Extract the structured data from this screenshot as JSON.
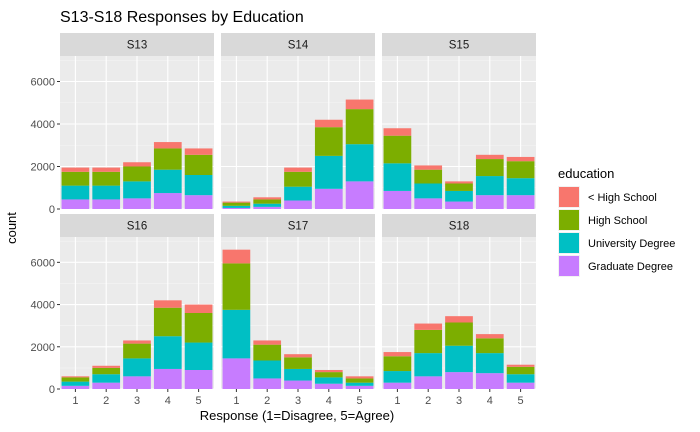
{
  "chart_data": {
    "type": "bar",
    "stacked": true,
    "title": "S13-S18 Responses by Education",
    "xlabel": "Response (1=Disagree, 5=Agree)",
    "ylabel": "count",
    "categories": [
      "1",
      "2",
      "3",
      "4",
      "5"
    ],
    "ylim": [
      0,
      7200
    ],
    "yticks": [
      0,
      2000,
      4000,
      6000
    ],
    "grid": true,
    "legend": {
      "title": "education",
      "position": "right",
      "items": [
        {
          "label": "< High School",
          "color": "#F8766D"
        },
        {
          "label": "High School",
          "color": "#7CAE00"
        },
        {
          "label": "University Degree",
          "color": "#00BFC4"
        },
        {
          "label": "Graduate Degree",
          "color": "#C77CFF"
        }
      ]
    },
    "panels": [
      {
        "name": "S13",
        "stacks": [
          {
            "Graduate Degree": [
              450,
              450,
              500,
              750,
              650
            ]
          },
          {
            "University Degree": [
              650,
              650,
              800,
              1100,
              950
            ]
          },
          {
            "High School": [
              650,
              650,
              700,
              1000,
              950
            ]
          },
          {
            "< High School": [
              200,
              200,
              200,
              300,
              300
            ]
          }
        ]
      },
      {
        "name": "S14",
        "stacks": [
          {
            "Graduate Degree": [
              50,
              100,
              400,
              950,
              1300
            ]
          },
          {
            "University Degree": [
              100,
              150,
              650,
              1550,
              1750
            ]
          },
          {
            "High School": [
              150,
              200,
              700,
              1350,
              1650
            ]
          },
          {
            "< High School": [
              50,
              100,
              200,
              350,
              450
            ]
          }
        ]
      },
      {
        "name": "S15",
        "stacks": [
          {
            "Graduate Degree": [
              850,
              500,
              350,
              650,
              650
            ]
          },
          {
            "University Degree": [
              1300,
              700,
              500,
              900,
              800
            ]
          },
          {
            "High School": [
              1300,
              650,
              350,
              800,
              800
            ]
          },
          {
            "< High School": [
              350,
              200,
              100,
              200,
              200
            ]
          }
        ]
      },
      {
        "name": "S16",
        "stacks": [
          {
            "Graduate Degree": [
              150,
              300,
              600,
              950,
              900
            ]
          },
          {
            "University Degree": [
              200,
              400,
              850,
              1550,
              1300
            ]
          },
          {
            "High School": [
              200,
              300,
              700,
              1350,
              1400
            ]
          },
          {
            "< High School": [
              50,
              100,
              150,
              350,
              400
            ]
          }
        ]
      },
      {
        "name": "S17",
        "stacks": [
          {
            "Graduate Degree": [
              1450,
              500,
              400,
              250,
              150
            ]
          },
          {
            "University Degree": [
              2300,
              850,
              550,
              300,
              150
            ]
          },
          {
            "High School": [
              2200,
              750,
              550,
              250,
              200
            ]
          },
          {
            "< High School": [
              650,
              200,
              150,
              100,
              100
            ]
          }
        ]
      },
      {
        "name": "S18",
        "stacks": [
          {
            "Graduate Degree": [
              300,
              600,
              800,
              750,
              300
            ]
          },
          {
            "University Degree": [
              550,
              1100,
              1250,
              950,
              400
            ]
          },
          {
            "High School": [
              700,
              1100,
              1100,
              700,
              350
            ]
          },
          {
            "< High School": [
              200,
              300,
              300,
              200,
              100
            ]
          }
        ]
      }
    ]
  }
}
